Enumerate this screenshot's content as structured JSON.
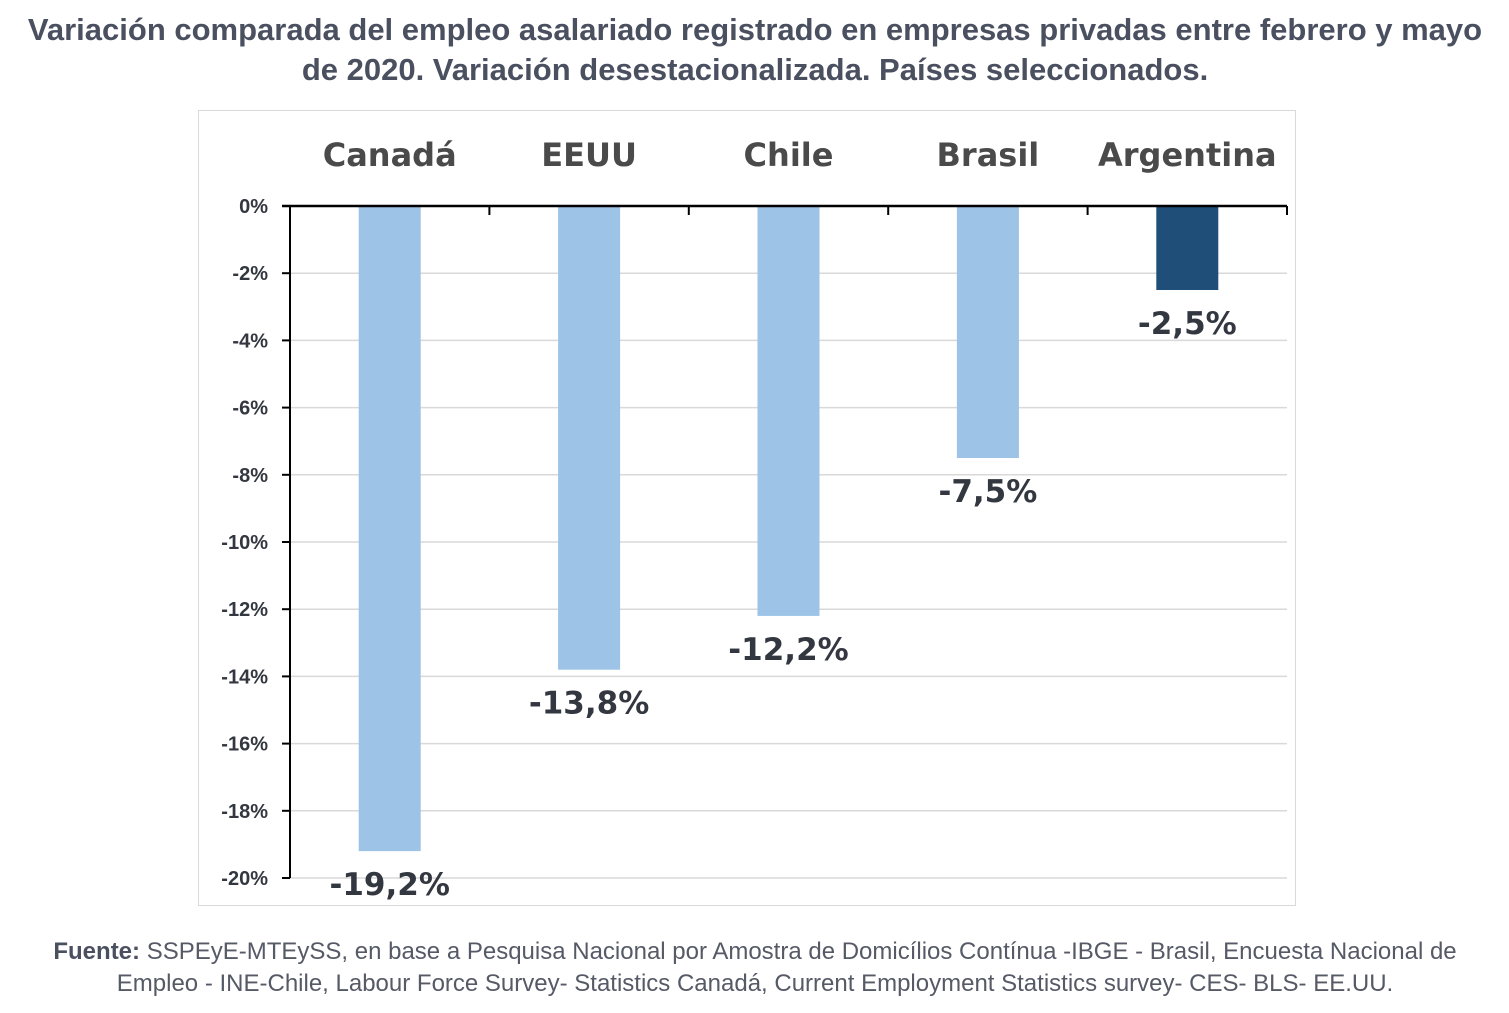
{
  "title": "Variación comparada del empleo asalariado registrado en empresas privadas entre febrero y mayo de 2020. Variación desestacionalizada. Países seleccionados.",
  "source": {
    "label": "Fuente:",
    "text": " SSPEyE-MTEySS, en base a Pesquisa Nacional por Amostra de Domicílios Contínua -IBGE - Brasil,  Encuesta Nacional de Empleo - INE-Chile, Labour Force Survey- Statistics Canadá, Current Employment Statistics survey- CES- BLS- EE.UU."
  },
  "chart_data": {
    "type": "bar",
    "title": "",
    "xlabel": "",
    "ylabel": "",
    "categories": [
      "Canadá",
      "EEUU",
      "Chile",
      "Brasil",
      "Argentina"
    ],
    "values": [
      -19.2,
      -13.8,
      -12.2,
      -7.5,
      -2.5
    ],
    "data_labels": [
      "-19,2%",
      "-13,8%",
      "-12,2%",
      "-7,5%",
      "-2,5%"
    ],
    "ylim": [
      -20,
      0
    ],
    "y_ticks": [
      0,
      -2,
      -4,
      -6,
      -8,
      -10,
      -12,
      -14,
      -16,
      -18,
      -20
    ],
    "y_tick_labels": [
      "0%",
      "-2%",
      "-4%",
      "-6%",
      "-8%",
      "-10%",
      "-12%",
      "-14%",
      "-16%",
      "-18%",
      "-20%"
    ],
    "category_label_position": "top",
    "grid": true,
    "legend": false,
    "colors": {
      "default_bar": "#9dc3e6",
      "highlight_bar": "#1f4e79",
      "highlight_category": "Argentina",
      "gridline": "#d9d9d9",
      "axis": "#000000",
      "text": "#333740"
    }
  }
}
